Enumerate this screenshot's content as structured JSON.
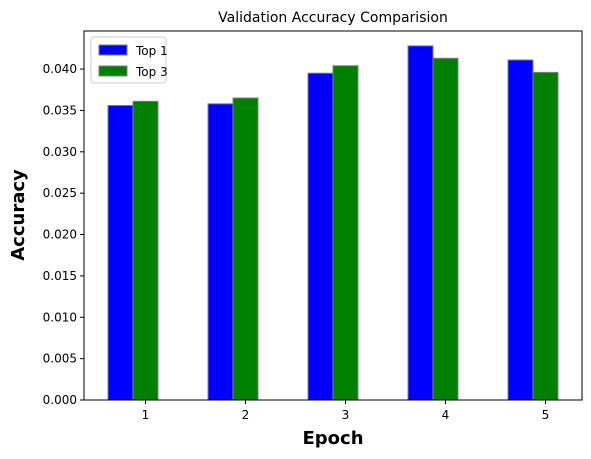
{
  "chart_data": {
    "type": "bar",
    "title": "Validation Accuracy Comparision",
    "xlabel": "Epoch",
    "ylabel": "Accuracy",
    "categories": [
      "1",
      "2",
      "3",
      "4",
      "5"
    ],
    "series": [
      {
        "name": "Top 1",
        "color": "#0000ff",
        "values": [
          0.0356,
          0.0358,
          0.0395,
          0.0428,
          0.0411
        ]
      },
      {
        "name": "Top 3",
        "color": "#008000",
        "values": [
          0.0361,
          0.0365,
          0.0404,
          0.0413,
          0.0396
        ]
      }
    ],
    "ylim": [
      0,
      0.0446
    ],
    "yticks": [
      "0.000",
      "0.005",
      "0.010",
      "0.015",
      "0.020",
      "0.025",
      "0.030",
      "0.035",
      "0.040"
    ],
    "legend": "top-left",
    "grid": false,
    "bar_edge_color": "#808080"
  }
}
